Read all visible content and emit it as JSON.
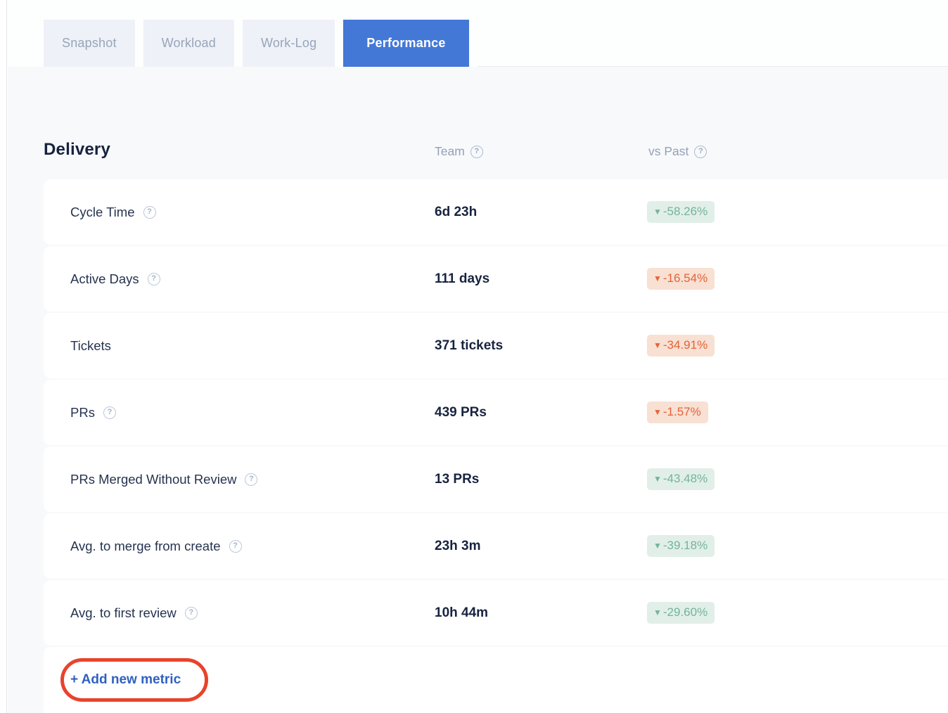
{
  "tabs": [
    {
      "label": "Snapshot",
      "active": false
    },
    {
      "label": "Workload",
      "active": false
    },
    {
      "label": "Work-Log",
      "active": false
    },
    {
      "label": "Performance",
      "active": true
    }
  ],
  "section": {
    "title": "Delivery",
    "columns": [
      {
        "label": "Team",
        "help": true
      },
      {
        "label": "vs Past",
        "help": true
      }
    ]
  },
  "metrics": [
    {
      "label": "Cycle Time",
      "help": true,
      "value": "6d 23h",
      "change": "-58.26%",
      "trend": "positive"
    },
    {
      "label": "Active Days",
      "help": true,
      "value": "111 days",
      "change": "-16.54%",
      "trend": "negative"
    },
    {
      "label": "Tickets",
      "help": false,
      "value": "371 tickets",
      "change": "-34.91%",
      "trend": "negative"
    },
    {
      "label": "PRs",
      "help": true,
      "value": "439 PRs",
      "change": "-1.57%",
      "trend": "negative"
    },
    {
      "label": "PRs Merged Without Review",
      "help": true,
      "value": "13 PRs",
      "change": "-43.48%",
      "trend": "positive"
    },
    {
      "label": "Avg. to merge from create",
      "help": true,
      "value": "23h 3m",
      "change": "-39.18%",
      "trend": "positive"
    },
    {
      "label": "Avg. to first review",
      "help": true,
      "value": "10h 44m",
      "change": "-29.60%",
      "trend": "positive"
    }
  ],
  "footer": {
    "add_metric_label": "+ Add new metric"
  },
  "icons": {
    "help": "?",
    "down_arrow": "▼"
  },
  "colors": {
    "accent_blue": "#4478d6",
    "positive_bg": "#e1efe8",
    "positive_fg": "#74b49c",
    "negative_bg": "#f8e0d2",
    "negative_fg": "#e4633a",
    "annotation": "#e8432b",
    "link_blue": "#3060c0"
  }
}
